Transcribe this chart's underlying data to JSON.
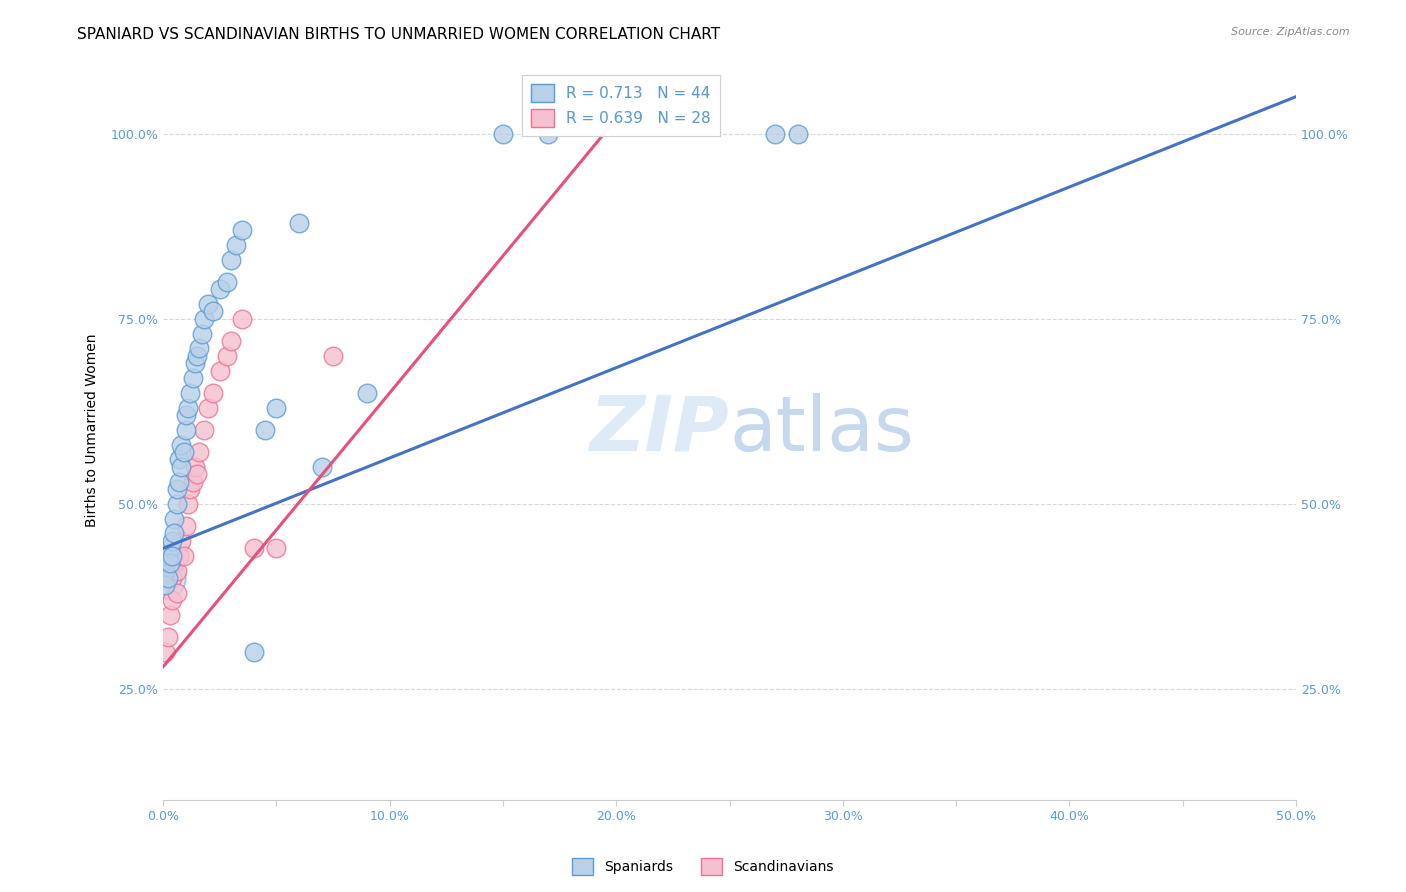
{
  "title": "SPANIARD VS SCANDINAVIAN BIRTHS TO UNMARRIED WOMEN CORRELATION CHART",
  "source": "Source: ZipAtlas.com",
  "ylabel": "Births to Unmarried Women",
  "xlim": [
    0.0,
    0.5
  ],
  "ylim": [
    0.1,
    1.1
  ],
  "xtick_positions": [
    0.0,
    0.05,
    0.1,
    0.15,
    0.2,
    0.25,
    0.3,
    0.35,
    0.4,
    0.45,
    0.5
  ],
  "xtick_labels": [
    "0.0%",
    "",
    "10.0%",
    "",
    "20.0%",
    "",
    "30.0%",
    "",
    "40.0%",
    "",
    "50.0%"
  ],
  "ytick_positions": [
    0.25,
    0.5,
    0.75,
    1.0
  ],
  "ytick_labels": [
    "25.0%",
    "50.0%",
    "75.0%",
    "100.0%"
  ],
  "spaniards_R": 0.713,
  "spaniards_N": 44,
  "scandinavians_R": 0.639,
  "scandinavians_N": 28,
  "spaniards_color": "#b8d0e8",
  "scandinavians_color": "#f5c0d0",
  "spaniards_edge_color": "#5b9bd5",
  "scandinavians_edge_color": "#f07090",
  "spaniards_line_color": "#4472c4",
  "scandinavians_line_color": "#e8507a",
  "background_color": "#ffffff",
  "grid_color": "#d8d8d8",
  "watermark_color": "#ddeaf7",
  "axis_tick_color": "#5b9bd5",
  "spaniards_x": [
    0.001,
    0.001,
    0.002,
    0.002,
    0.003,
    0.003,
    0.004,
    0.004,
    0.005,
    0.005,
    0.006,
    0.006,
    0.007,
    0.007,
    0.008,
    0.008,
    0.009,
    0.01,
    0.01,
    0.011,
    0.012,
    0.013,
    0.014,
    0.015,
    0.016,
    0.017,
    0.018,
    0.02,
    0.022,
    0.025,
    0.028,
    0.03,
    0.032,
    0.035,
    0.04,
    0.045,
    0.05,
    0.06,
    0.07,
    0.09,
    0.15,
    0.17,
    0.27,
    0.28
  ],
  "spaniards_y": [
    0.41,
    0.39,
    0.43,
    0.4,
    0.44,
    0.42,
    0.45,
    0.43,
    0.48,
    0.46,
    0.5,
    0.52,
    0.53,
    0.56,
    0.55,
    0.58,
    0.57,
    0.6,
    0.62,
    0.63,
    0.65,
    0.67,
    0.69,
    0.7,
    0.71,
    0.73,
    0.75,
    0.77,
    0.76,
    0.79,
    0.8,
    0.83,
    0.85,
    0.87,
    0.3,
    0.6,
    0.63,
    0.88,
    0.55,
    0.65,
    1.0,
    1.0,
    1.0,
    1.0
  ],
  "scandinavians_x": [
    0.001,
    0.002,
    0.003,
    0.004,
    0.004,
    0.005,
    0.006,
    0.006,
    0.007,
    0.008,
    0.009,
    0.01,
    0.011,
    0.012,
    0.013,
    0.014,
    0.015,
    0.016,
    0.018,
    0.02,
    0.022,
    0.025,
    0.028,
    0.03,
    0.035,
    0.04,
    0.05,
    0.075
  ],
  "scandinavians_y": [
    0.3,
    0.32,
    0.35,
    0.37,
    0.4,
    0.42,
    0.38,
    0.41,
    0.43,
    0.45,
    0.43,
    0.47,
    0.5,
    0.52,
    0.53,
    0.55,
    0.54,
    0.57,
    0.6,
    0.63,
    0.65,
    0.68,
    0.7,
    0.72,
    0.75,
    0.44,
    0.44,
    0.7
  ],
  "sp_line_x0": 0.0,
  "sp_line_y0": 0.44,
  "sp_line_x1": 0.5,
  "sp_line_y1": 1.05,
  "sc_line_x0": 0.0,
  "sc_line_y0": 0.28,
  "sc_line_x1": 0.2,
  "sc_line_y1": 1.02,
  "title_fontsize": 11,
  "label_fontsize": 10,
  "tick_fontsize": 9,
  "legend_fontsize": 11,
  "marker_size": 180,
  "big_marker_size": 850
}
